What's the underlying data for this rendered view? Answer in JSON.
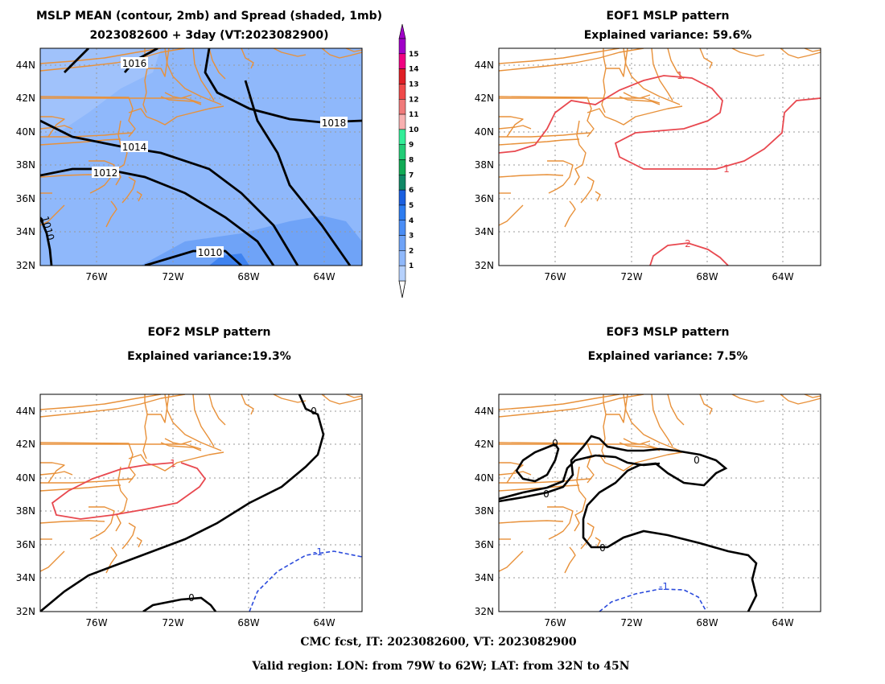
{
  "panels": {
    "mean": {
      "title1": "MSLP MEAN (contour, 2mb) and Spread (shaded, 1mb)",
      "title2": "2023082600 + 3day (VT:2023082900)",
      "contours": [
        "1016",
        "1018",
        "1014",
        "1012",
        "1010",
        "1010"
      ]
    },
    "eof1": {
      "title1": "EOF1 MSLP pattern",
      "title2": "Explained variance: 59.6%",
      "contours": [
        "1",
        "1",
        "2"
      ]
    },
    "eof2": {
      "title1": "EOF2 MSLP pattern",
      "title2": "Explained variance:19.3%",
      "contours": [
        "0",
        "1",
        "-1",
        "0"
      ]
    },
    "eof3": {
      "title1": "EOF3 MSLP pattern",
      "title2": "Explained variance: 7.5%",
      "contours": [
        "0",
        "0",
        "0",
        "0",
        "-1"
      ]
    }
  },
  "axes": {
    "lat_labels": [
      "44N",
      "42N",
      "40N",
      "38N",
      "36N",
      "34N",
      "32N"
    ],
    "lon_labels": [
      "76W",
      "72W",
      "68W",
      "64W"
    ]
  },
  "colorbar": {
    "labels": [
      "15",
      "14",
      "13",
      "12",
      "11",
      "10",
      "9",
      "8",
      "7",
      "6",
      "5",
      "4",
      "3",
      "2",
      "1"
    ],
    "colors": [
      "#a000c8",
      "#f00082",
      "#e01f26",
      "#f04a4a",
      "#f07a7a",
      "#f8b0b0",
      "#33ee99",
      "#22cc77",
      "#11aa55",
      "#118866",
      "#1a5fe0",
      "#2d7cf0",
      "#4a8df5",
      "#6fa3f7",
      "#8fb8fb",
      "#b6d1fc"
    ]
  },
  "footer": {
    "line1": "CMC fcst, IT: 2023082600, VT: 2023082900",
    "line2": "Valid region: LON: from 79W to 62W; LAT: from 32N to 45N"
  }
}
